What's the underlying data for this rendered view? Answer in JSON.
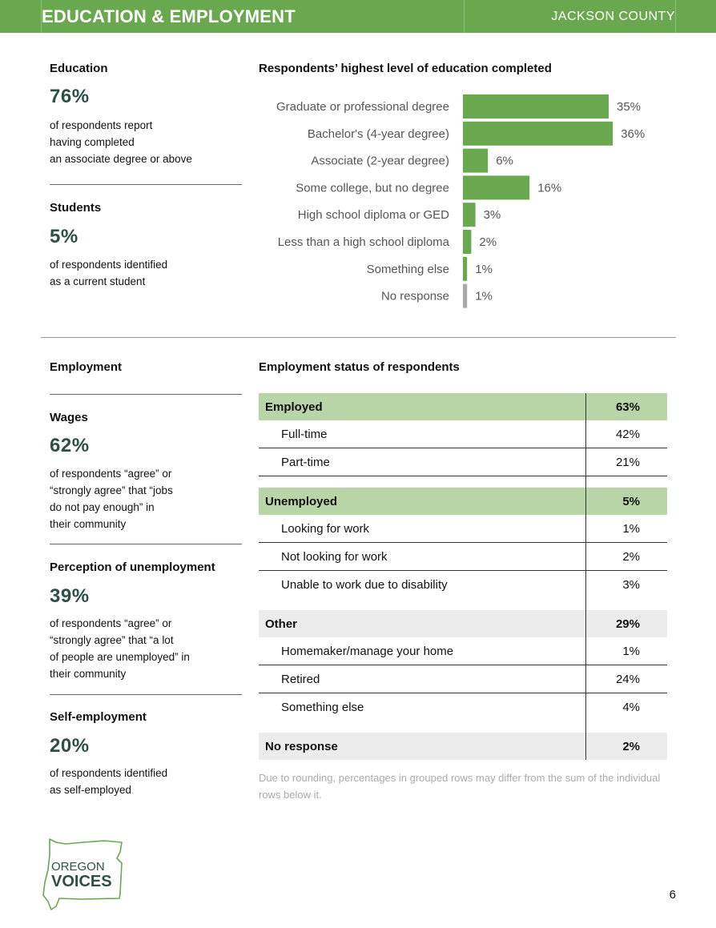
{
  "header": {
    "title": "EDUCATION & EMPLOYMENT",
    "county": "JACKSON COUNTY"
  },
  "education": {
    "label": "Education",
    "stat": "76%",
    "desc": [
      "of respondents report",
      "having completed",
      "an associate degree or above"
    ]
  },
  "students": {
    "label": "Students",
    "stat": "5%",
    "desc": [
      "of respondents identified",
      "as a current student"
    ]
  },
  "edu_chart_title": "Respondents’ highest level of education completed",
  "chart_data": {
    "type": "bar",
    "orientation": "horizontal",
    "title": "Respondents’ highest level of education completed",
    "categories": [
      "Graduate or professional degree",
      "Bachelor's (4-year degree)",
      "Associate (2-year degree)",
      "Some college, but no degree",
      "High school diploma or GED",
      "Less than a high school diploma",
      "Something else",
      "No response"
    ],
    "values": [
      35,
      36,
      6,
      16,
      3,
      2,
      1,
      1
    ],
    "value_labels": [
      "35%",
      "36%",
      "6%",
      "16%",
      "3%",
      "2%",
      "1%",
      "1%"
    ],
    "bar_colors": [
      "#6aa84f",
      "#6aa84f",
      "#6aa84f",
      "#6aa84f",
      "#6aa84f",
      "#6aa84f",
      "#6aa84f",
      "#aaaaaa"
    ],
    "grid": false
  },
  "employment": {
    "label": "Employment"
  },
  "wages": {
    "label": "Wages",
    "stat": "62%",
    "desc": [
      "of respondents “agree” or",
      "“strongly agree” that “jobs",
      "do not pay enough” in",
      "their community"
    ]
  },
  "perception": {
    "label": "Perception of unemployment",
    "stat": "39%",
    "desc": [
      "of respondents “agree” or",
      "“strongly agree” that “a lot",
      "of people are unemployed” in",
      "their community"
    ]
  },
  "self_employment": {
    "label": "Self-employment",
    "stat": "20%",
    "desc": [
      "of respondents identified",
      "as self-employed"
    ]
  },
  "emp_table": {
    "title": "Employment status of respondents",
    "rows": [
      {
        "label": "Employed",
        "value": "63%",
        "type": "group",
        "fill": "green"
      },
      {
        "label": "Full-time",
        "value": "42%",
        "type": "sub"
      },
      {
        "label": "Part-time",
        "value": "21%",
        "type": "sub"
      },
      {
        "label": "Unemployed",
        "value": "5%",
        "type": "group",
        "fill": "green"
      },
      {
        "label": "Looking for work",
        "value": "1%",
        "type": "sub"
      },
      {
        "label": "Not looking for work",
        "value": "2%",
        "type": "sub"
      },
      {
        "label": "Unable to work due to disability",
        "value": "3%",
        "type": "sub"
      },
      {
        "label": "Other",
        "value": "29%",
        "type": "group",
        "fill": "grey"
      },
      {
        "label": "Homemaker/manage your home",
        "value": "1%",
        "type": "sub"
      },
      {
        "label": "Retired",
        "value": "24%",
        "type": "sub"
      },
      {
        "label": "Something else",
        "value": "4%",
        "type": "sub"
      },
      {
        "label": "No response",
        "value": "2%",
        "type": "group",
        "fill": "grey"
      }
    ],
    "note": "Due to rounding, percentages in grouped rows may differ from the sum of the individual rows below it."
  },
  "logo": {
    "line1": "OREGON",
    "line2": "VOICES",
    "color": "#6aa84f"
  },
  "page_number": "6"
}
